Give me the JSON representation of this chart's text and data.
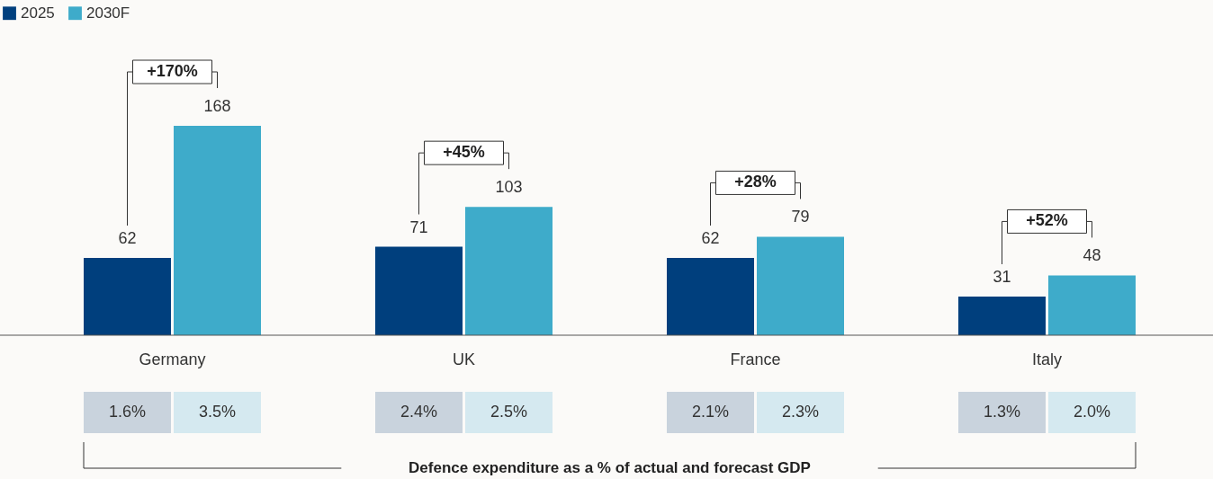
{
  "chart_data": {
    "type": "bar",
    "categories": [
      "Germany",
      "UK",
      "France",
      "Italy"
    ],
    "series": [
      {
        "name": "2025",
        "color": "#003f7d",
        "values": [
          62,
          71,
          62,
          31
        ]
      },
      {
        "name": "2030F",
        "color": "#3eabca",
        "values": [
          168,
          103,
          79,
          48
        ]
      }
    ],
    "data_labels": true,
    "legend": "top left",
    "annotations": [
      "+170%",
      "+45%",
      "+28%",
      "+52%",
      "1.6%",
      "3.5%",
      "2.4%",
      "2.5%",
      "2.1%",
      "2.3%",
      "1.3%",
      "2.0%",
      "Defence expenditure as a % of actual and forecast GDP"
    ]
  }
}
